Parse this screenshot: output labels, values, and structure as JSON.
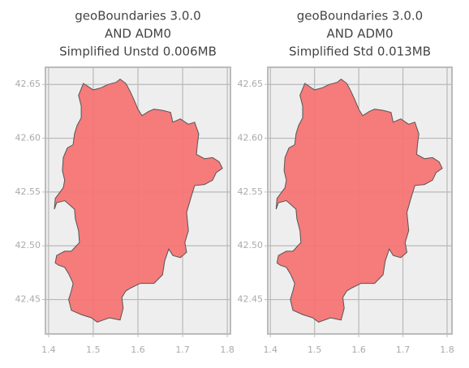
{
  "chart_data": [
    {
      "type": "polygon",
      "title": [
        "geoBoundaries 3.0.0",
        "AND ADM0",
        "Simplified Unstd 0.006MB"
      ],
      "color": "#f67474",
      "grid": true,
      "xlim": [
        1.393,
        1.807
      ],
      "ylim": [
        42.418,
        42.666
      ],
      "xticks": [
        1.4,
        1.5,
        1.6,
        1.7,
        1.8
      ],
      "yticks": [
        42.45,
        {
          "value": 42.5,
          "label": "42.50"
        },
        42.55,
        {
          "value": 42.6,
          "label": "42.60"
        },
        42.65
      ],
      "lon": [
        1.478,
        1.5,
        1.518,
        1.533,
        1.551,
        1.56,
        1.573,
        1.582,
        1.591,
        1.6,
        1.609,
        1.624,
        1.636,
        1.655,
        1.673,
        1.678,
        1.695,
        1.713,
        1.727,
        1.736,
        1.733,
        1.731,
        1.749,
        1.767,
        1.782,
        1.789,
        1.775,
        1.767,
        1.749,
        1.727,
        1.718,
        1.709,
        1.713,
        1.705,
        1.709,
        1.695,
        1.678,
        1.669,
        1.66,
        1.655,
        1.636,
        1.605,
        1.585,
        1.573,
        1.564,
        1.567,
        1.56,
        1.536,
        1.509,
        1.496,
        1.473,
        1.451,
        1.445,
        1.451,
        1.455,
        1.445,
        1.436,
        1.422,
        1.415,
        1.418,
        1.436,
        1.451,
        1.469,
        1.467,
        1.46,
        1.458,
        1.436,
        1.418,
        1.413,
        1.415,
        1.433,
        1.436,
        1.431,
        1.433,
        1.442,
        1.455,
        1.458,
        1.464,
        1.473,
        1.473,
        1.467
      ],
      "lat": [
        42.651,
        42.645,
        42.647,
        42.65,
        42.652,
        42.655,
        42.651,
        42.644,
        42.636,
        42.627,
        42.621,
        42.625,
        42.627,
        42.626,
        42.624,
        42.615,
        42.618,
        42.613,
        42.615,
        42.604,
        42.594,
        42.585,
        42.581,
        42.582,
        42.578,
        42.572,
        42.568,
        42.561,
        42.557,
        42.556,
        42.544,
        42.531,
        42.514,
        42.503,
        42.494,
        42.489,
        42.491,
        42.497,
        42.486,
        42.473,
        42.465,
        42.465,
        42.461,
        42.458,
        42.452,
        42.442,
        42.431,
        42.433,
        42.429,
        42.433,
        42.436,
        42.44,
        42.45,
        42.458,
        42.465,
        42.474,
        42.48,
        42.482,
        42.484,
        42.491,
        42.495,
        42.495,
        42.503,
        42.514,
        42.525,
        42.534,
        42.542,
        42.54,
        42.534,
        42.544,
        42.554,
        42.561,
        42.57,
        42.582,
        42.591,
        42.594,
        42.604,
        42.612,
        42.619,
        42.63,
        42.64
      ]
    },
    {
      "type": "polygon",
      "title": [
        "geoBoundaries 3.0.0",
        "AND ADM0",
        "Simplified Std 0.013MB"
      ],
      "color": "#f67474",
      "grid": true,
      "xlim": [
        1.394,
        1.811
      ],
      "ylim": [
        42.418,
        42.666
      ],
      "xticks": [
        1.4,
        1.5,
        1.6,
        1.7,
        1.8
      ],
      "yticks": [
        42.45,
        {
          "value": 42.5,
          "label": "42.50"
        },
        42.55,
        {
          "value": 42.6,
          "label": "42.60"
        },
        42.65
      ],
      "lon": [
        1.478,
        1.5,
        1.518,
        1.533,
        1.551,
        1.56,
        1.573,
        1.582,
        1.591,
        1.6,
        1.609,
        1.624,
        1.636,
        1.655,
        1.673,
        1.678,
        1.695,
        1.713,
        1.727,
        1.736,
        1.733,
        1.731,
        1.749,
        1.767,
        1.782,
        1.789,
        1.775,
        1.767,
        1.749,
        1.727,
        1.718,
        1.709,
        1.713,
        1.705,
        1.709,
        1.695,
        1.678,
        1.669,
        1.66,
        1.655,
        1.636,
        1.605,
        1.585,
        1.573,
        1.564,
        1.567,
        1.56,
        1.536,
        1.509,
        1.496,
        1.473,
        1.451,
        1.445,
        1.451,
        1.455,
        1.445,
        1.436,
        1.422,
        1.415,
        1.418,
        1.436,
        1.451,
        1.469,
        1.467,
        1.46,
        1.458,
        1.436,
        1.418,
        1.413,
        1.415,
        1.433,
        1.436,
        1.431,
        1.433,
        1.442,
        1.455,
        1.458,
        1.464,
        1.473,
        1.473,
        1.467
      ],
      "lat": [
        42.651,
        42.645,
        42.647,
        42.65,
        42.652,
        42.655,
        42.651,
        42.644,
        42.636,
        42.627,
        42.621,
        42.625,
        42.627,
        42.626,
        42.624,
        42.615,
        42.618,
        42.613,
        42.615,
        42.604,
        42.594,
        42.585,
        42.581,
        42.582,
        42.578,
        42.572,
        42.568,
        42.561,
        42.557,
        42.556,
        42.544,
        42.531,
        42.514,
        42.503,
        42.494,
        42.489,
        42.491,
        42.497,
        42.486,
        42.473,
        42.465,
        42.465,
        42.461,
        42.458,
        42.452,
        42.442,
        42.431,
        42.433,
        42.429,
        42.433,
        42.436,
        42.44,
        42.45,
        42.458,
        42.465,
        42.474,
        42.48,
        42.482,
        42.484,
        42.491,
        42.495,
        42.495,
        42.503,
        42.514,
        42.525,
        42.534,
        42.542,
        42.54,
        42.534,
        42.544,
        42.554,
        42.561,
        42.57,
        42.582,
        42.591,
        42.594,
        42.604,
        42.612,
        42.619,
        42.63,
        42.64
      ]
    }
  ]
}
